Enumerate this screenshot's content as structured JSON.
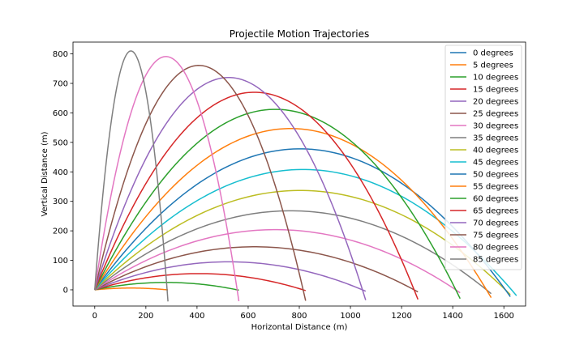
{
  "chart_data": {
    "type": "line",
    "title": "Projectile Motion Trajectories",
    "xlabel": "Horizontal Distance (m)",
    "ylabel": "Vertical Distance (m)",
    "xlim": [
      -85,
      1685
    ],
    "ylim": [
      -55,
      840
    ],
    "xticks": [
      0,
      200,
      400,
      600,
      800,
      1000,
      1200,
      1400,
      1600
    ],
    "yticks": [
      0,
      100,
      200,
      300,
      400,
      500,
      600,
      700,
      800
    ],
    "grid": false,
    "legend_position": "top-right",
    "series": [
      {
        "name": "0 degrees",
        "color": "#1f77b4",
        "angle": 0,
        "range": 0,
        "apex": 0
      },
      {
        "name": "5 degrees",
        "color": "#ff7f0e",
        "angle": 5,
        "range": 283,
        "apex": 6
      },
      {
        "name": "10 degrees",
        "color": "#2ca02c",
        "angle": 10,
        "range": 557,
        "apex": 25
      },
      {
        "name": "15 degrees",
        "color": "#d62728",
        "angle": 15,
        "range": 815,
        "apex": 55
      },
      {
        "name": "20 degrees",
        "color": "#9467bd",
        "angle": 20,
        "range": 1047,
        "apex": 95
      },
      {
        "name": "25 degrees",
        "color": "#8c564b",
        "angle": 25,
        "range": 1249,
        "apex": 146
      },
      {
        "name": "30 degrees",
        "color": "#e377c2",
        "angle": 30,
        "range": 1412,
        "apex": 204
      },
      {
        "name": "35 degrees",
        "color": "#7f7f7f",
        "angle": 35,
        "range": 1532,
        "apex": 268
      },
      {
        "name": "40 degrees",
        "color": "#bcbd22",
        "angle": 40,
        "range": 1606,
        "apex": 337
      },
      {
        "name": "45 degrees",
        "color": "#17becf",
        "angle": 45,
        "range": 1630,
        "apex": 408
      },
      {
        "name": "50 degrees",
        "color": "#1f77b4",
        "angle": 50,
        "range": 1606,
        "apex": 478
      },
      {
        "name": "55 degrees",
        "color": "#ff7f0e",
        "angle": 55,
        "range": 1532,
        "apex": 547
      },
      {
        "name": "60 degrees",
        "color": "#2ca02c",
        "angle": 60,
        "range": 1412,
        "apex": 612
      },
      {
        "name": "65 degrees",
        "color": "#d62728",
        "angle": 65,
        "range": 1249,
        "apex": 670
      },
      {
        "name": "70 degrees",
        "color": "#9467bd",
        "angle": 70,
        "range": 1047,
        "apex": 720
      },
      {
        "name": "75 degrees",
        "color": "#8c564b",
        "angle": 75,
        "range": 815,
        "apex": 761
      },
      {
        "name": "80 degrees",
        "color": "#e377c2",
        "angle": 80,
        "range": 557,
        "apex": 791
      },
      {
        "name": "85 degrees",
        "color": "#7f7f7f",
        "angle": 85,
        "range": 283,
        "apex": 810
      }
    ]
  }
}
